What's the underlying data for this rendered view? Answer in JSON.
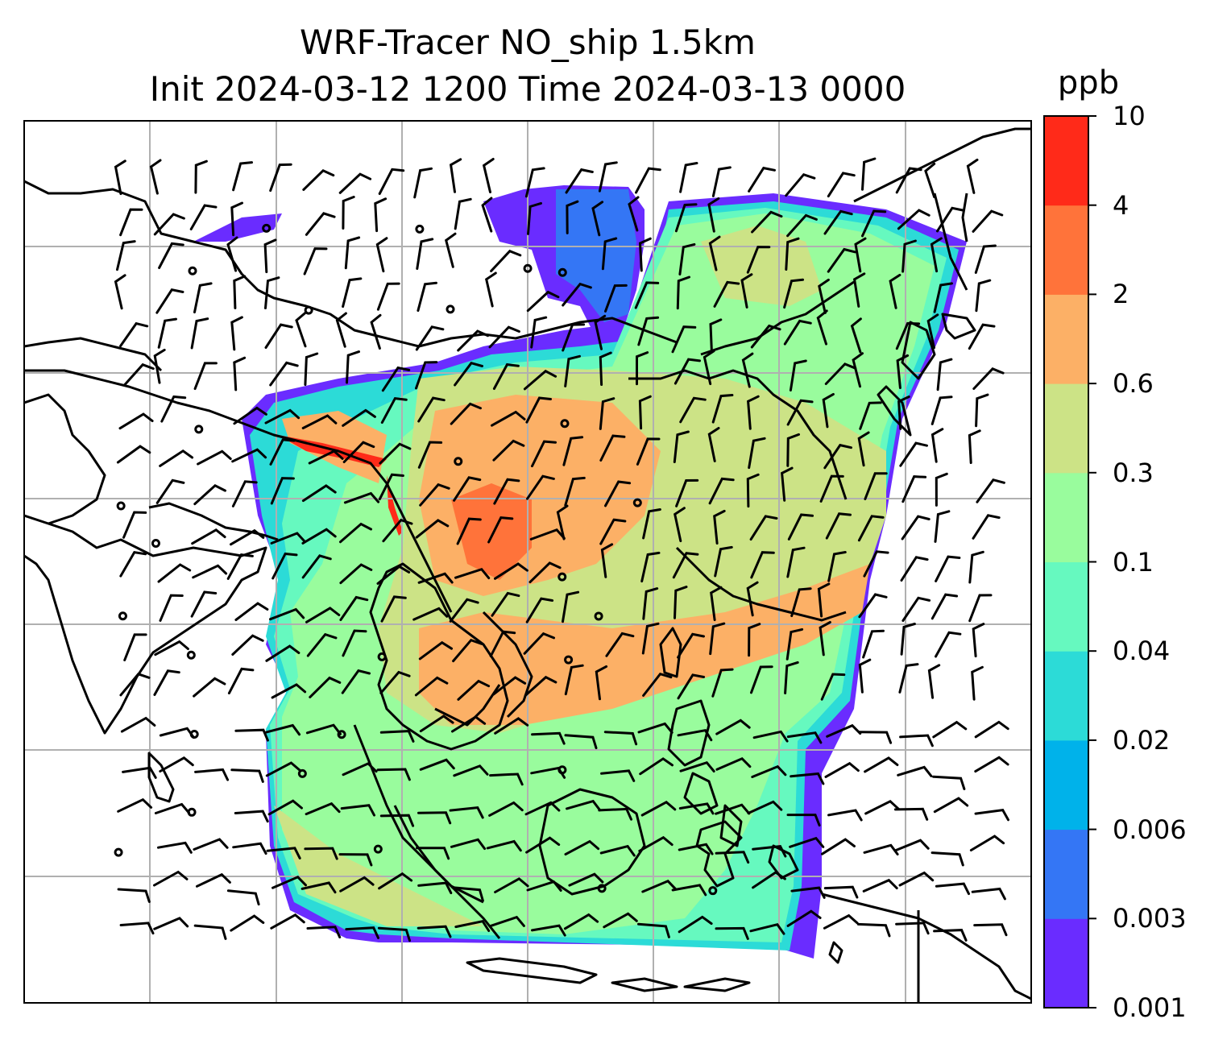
{
  "title_line1": "WRF-Tracer NO_ship 1.5km",
  "title_line2": "Init 2024-03-12 1200 Time 2024-03-13 0000",
  "colorbar": {
    "unit_label": "ppb",
    "tick_labels": [
      "0.001",
      "0.003",
      "0.006",
      "0.02",
      "0.04",
      "0.1",
      "0.3",
      "0.6",
      "2",
      "4",
      "10"
    ],
    "colors": [
      "#6a2cff",
      "#3476f5",
      "#00b2ea",
      "#2cdbd7",
      "#66f9bf",
      "#99fc9d",
      "#cce386",
      "#fcb066",
      "#ff733a",
      "#ff2a19"
    ]
  },
  "map": {
    "gridlines": true,
    "gridline_color": "#b0b0b0",
    "coastline_color": "#000000"
  }
}
